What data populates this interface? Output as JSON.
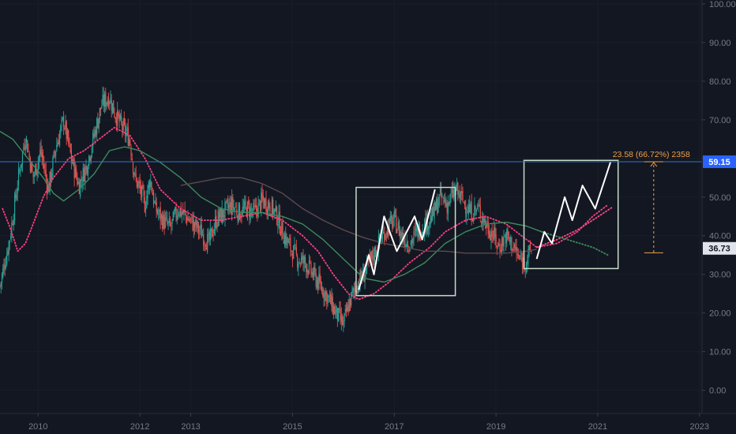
{
  "chart_data": {
    "type": "line",
    "title": "",
    "instrument_interval": "weekly",
    "y_ticks": [
      "0.00",
      "10.00",
      "20.00",
      "30.00",
      "40.00",
      "50.00",
      "60.00",
      "70.00",
      "80.00",
      "90.00",
      "100.00"
    ],
    "x_ticks": [
      {
        "label": "2010",
        "t": 2010.0
      },
      {
        "label": "2012",
        "t": 2012.0
      },
      {
        "label": "2013",
        "t": 2013.0
      },
      {
        "label": "2015",
        "t": 2015.0
      },
      {
        "label": "2017",
        "t": 2017.0
      },
      {
        "label": "2019",
        "t": 2019.0
      },
      {
        "label": "2021",
        "t": 2021.0
      },
      {
        "label": "2023",
        "t": 2023.0
      }
    ],
    "ylim": [
      -6,
      101
    ],
    "xlim": [
      2009.25,
      2023.05
    ],
    "price_close_path": [
      [
        2009.25,
        27
      ],
      [
        2009.45,
        40
      ],
      [
        2009.6,
        54
      ],
      [
        2009.75,
        66
      ],
      [
        2009.9,
        55
      ],
      [
        2010.05,
        62
      ],
      [
        2010.2,
        52
      ],
      [
        2010.35,
        63
      ],
      [
        2010.5,
        70
      ],
      [
        2010.65,
        60
      ],
      [
        2010.8,
        53
      ],
      [
        2010.95,
        58
      ],
      [
        2011.1,
        66
      ],
      [
        2011.25,
        74
      ],
      [
        2011.4,
        76
      ],
      [
        2011.5,
        72
      ],
      [
        2011.65,
        68
      ],
      [
        2011.8,
        65
      ],
      [
        2011.9,
        55
      ],
      [
        2012.0,
        52
      ],
      [
        2012.1,
        48
      ],
      [
        2012.2,
        55
      ],
      [
        2012.3,
        47
      ],
      [
        2012.45,
        44
      ],
      [
        2012.6,
        42
      ],
      [
        2012.75,
        47
      ],
      [
        2012.9,
        45
      ],
      [
        2013.05,
        43
      ],
      [
        2013.2,
        41
      ],
      [
        2013.35,
        38
      ],
      [
        2013.5,
        44
      ],
      [
        2013.65,
        46
      ],
      [
        2013.8,
        48
      ],
      [
        2013.95,
        46
      ],
      [
        2014.1,
        47
      ],
      [
        2014.25,
        46
      ],
      [
        2014.4,
        49
      ],
      [
        2014.55,
        48
      ],
      [
        2014.7,
        45
      ],
      [
        2014.8,
        41
      ],
      [
        2014.95,
        37
      ],
      [
        2015.1,
        34
      ],
      [
        2015.25,
        33
      ],
      [
        2015.4,
        30
      ],
      [
        2015.55,
        27
      ],
      [
        2015.7,
        24
      ],
      [
        2015.85,
        20
      ],
      [
        2016.0,
        17
      ],
      [
        2016.1,
        22
      ],
      [
        2016.25,
        27
      ],
      [
        2016.4,
        30
      ],
      [
        2016.55,
        34
      ],
      [
        2016.7,
        38
      ],
      [
        2016.85,
        42
      ],
      [
        2017.0,
        44
      ],
      [
        2017.15,
        40
      ],
      [
        2017.3,
        38
      ],
      [
        2017.45,
        41
      ],
      [
        2017.6,
        43
      ],
      [
        2017.75,
        45
      ],
      [
        2017.9,
        50
      ],
      [
        2018.05,
        48
      ],
      [
        2018.2,
        52
      ],
      [
        2018.35,
        49
      ],
      [
        2018.5,
        46
      ],
      [
        2018.65,
        47
      ],
      [
        2018.8,
        43
      ],
      [
        2018.95,
        40
      ],
      [
        2019.05,
        37
      ],
      [
        2019.2,
        40
      ],
      [
        2019.35,
        37
      ],
      [
        2019.45,
        34
      ],
      [
        2019.55,
        33
      ],
      [
        2019.65,
        35
      ],
      [
        2019.7,
        36.73
      ]
    ],
    "series": [
      {
        "name": "",
        "color": "#ff3f7f",
        "style": "dotted",
        "points": [
          [
            2009.3,
            47
          ],
          [
            2009.45,
            42
          ],
          [
            2009.6,
            36
          ],
          [
            2009.75,
            38
          ],
          [
            2009.9,
            43
          ],
          [
            2010.1,
            50
          ],
          [
            2010.3,
            55
          ],
          [
            2010.6,
            60
          ],
          [
            2010.9,
            62
          ],
          [
            2011.2,
            65
          ],
          [
            2011.5,
            68
          ],
          [
            2011.8,
            66
          ],
          [
            2012.1,
            60
          ],
          [
            2012.4,
            52
          ],
          [
            2012.8,
            47
          ],
          [
            2013.2,
            44
          ],
          [
            2013.6,
            44
          ],
          [
            2014.0,
            45
          ],
          [
            2014.4,
            46
          ],
          [
            2014.8,
            44
          ],
          [
            2015.2,
            40
          ],
          [
            2015.5,
            36
          ],
          [
            2015.8,
            30
          ],
          [
            2016.1,
            25
          ],
          [
            2016.3,
            23.5
          ],
          [
            2016.6,
            25
          ],
          [
            2016.9,
            28
          ],
          [
            2017.3,
            33
          ],
          [
            2017.7,
            37
          ],
          [
            2018.0,
            41
          ],
          [
            2018.4,
            44
          ],
          [
            2018.8,
            45
          ],
          [
            2019.2,
            43
          ],
          [
            2019.5,
            40
          ],
          [
            2019.8,
            37
          ],
          [
            2020.2,
            38
          ],
          [
            2020.6,
            41
          ],
          [
            2020.9,
            45
          ],
          [
            2021.2,
            48
          ]
        ]
      },
      {
        "name": "",
        "color": "#ff4a86",
        "style": "dotted",
        "points": [
          [
            2019.8,
            37
          ],
          [
            2020.2,
            39
          ],
          [
            2020.6,
            41.5
          ],
          [
            2020.9,
            44
          ],
          [
            2021.3,
            47.5
          ]
        ]
      },
      {
        "name": "",
        "color": "#3d8a5b",
        "style": "solid",
        "points": [
          [
            2009.25,
            67
          ],
          [
            2009.5,
            65
          ],
          [
            2009.8,
            60
          ],
          [
            2010.1,
            55
          ],
          [
            2010.3,
            51
          ],
          [
            2010.5,
            49
          ],
          [
            2010.8,
            52
          ],
          [
            2011.1,
            56
          ],
          [
            2011.4,
            62
          ],
          [
            2011.7,
            63
          ],
          [
            2012.0,
            62
          ],
          [
            2012.4,
            59
          ],
          [
            2012.8,
            55
          ],
          [
            2013.2,
            50
          ],
          [
            2013.6,
            47
          ],
          [
            2014.0,
            46
          ],
          [
            2014.4,
            46
          ],
          [
            2014.8,
            45
          ],
          [
            2015.2,
            43
          ],
          [
            2015.6,
            39
          ],
          [
            2016.0,
            34
          ],
          [
            2016.4,
            29
          ],
          [
            2016.8,
            28
          ],
          [
            2017.2,
            30
          ],
          [
            2017.6,
            33
          ],
          [
            2018.0,
            38
          ],
          [
            2018.4,
            41
          ],
          [
            2018.8,
            43
          ],
          [
            2019.2,
            43.5
          ],
          [
            2019.6,
            42.5
          ],
          [
            2019.9,
            41
          ]
        ]
      },
      {
        "name": "",
        "color": "#3d8a5b",
        "style": "dotted",
        "points": [
          [
            2019.9,
            41
          ],
          [
            2020.4,
            39
          ],
          [
            2020.9,
            37
          ],
          [
            2021.2,
            35
          ]
        ]
      },
      {
        "name": "",
        "color": "#5a4a4e",
        "style": "solid",
        "points": [
          [
            2012.8,
            53
          ],
          [
            2013.2,
            54
          ],
          [
            2013.6,
            55
          ],
          [
            2014.0,
            55
          ],
          [
            2014.4,
            53.5
          ],
          [
            2014.8,
            51
          ],
          [
            2015.2,
            47
          ],
          [
            2015.6,
            44
          ],
          [
            2016.0,
            41.5
          ],
          [
            2016.4,
            39.5
          ],
          [
            2016.8,
            38
          ],
          [
            2017.2,
            37
          ],
          [
            2017.6,
            36
          ],
          [
            2018.0,
            36
          ],
          [
            2018.4,
            35.5
          ],
          [
            2018.8,
            35.5
          ],
          [
            2019.2,
            35.5
          ],
          [
            2019.6,
            36
          ],
          [
            2019.8,
            36.5
          ]
        ]
      },
      {
        "name": "",
        "color": "#ffffff",
        "style": "solid",
        "points": [
          [
            2016.3,
            26
          ],
          [
            2016.5,
            35
          ],
          [
            2016.6,
            30
          ],
          [
            2016.8,
            45
          ],
          [
            2017.05,
            36
          ],
          [
            2017.4,
            45
          ],
          [
            2017.55,
            39
          ],
          [
            2017.8,
            52
          ]
        ]
      },
      {
        "name": "",
        "color": "#ffffff",
        "style": "solid",
        "points": [
          [
            2019.8,
            34
          ],
          [
            2019.95,
            41
          ],
          [
            2020.1,
            38
          ],
          [
            2020.35,
            50
          ],
          [
            2020.5,
            44
          ],
          [
            2020.7,
            53
          ],
          [
            2020.95,
            47
          ],
          [
            2021.25,
            59
          ]
        ]
      }
    ],
    "boxes": [
      {
        "t0": 2016.25,
        "t1": 2018.2,
        "y0": 24.5,
        "y1": 52.5,
        "color": "#c8dcc8"
      },
      {
        "t0": 2019.55,
        "t1": 2021.4,
        "y0": 31.5,
        "y1": 59.5,
        "color": "#c8dcc8"
      }
    ],
    "hline": {
      "value": 59.15,
      "color": "#2e76c8"
    },
    "measure": {
      "t": 2022.1,
      "from": 35.57,
      "to": 59.15,
      "color": "#f0a048",
      "label": "23.58 (66.72%) 2358"
    },
    "price_labels": [
      {
        "text": "59.15",
        "value": 59.15,
        "bg": "#2962ff",
        "fg": "#ffffff"
      },
      {
        "text": "36.73",
        "value": 36.73,
        "bg": "#e0e3eb",
        "fg": "#131722"
      }
    ]
  }
}
